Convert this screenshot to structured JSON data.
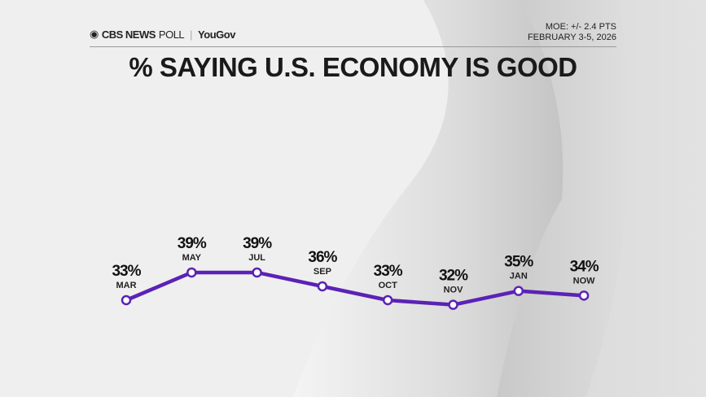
{
  "header": {
    "brand": "CBS NEWS",
    "brand_suffix": "POLL",
    "partner": "YouGov",
    "moe": "MOE: +/- 2.4 PTS",
    "dates": "FEBRUARY 3-5, 2026"
  },
  "colors": {
    "line": "#5b22b5",
    "background": "#efefef"
  },
  "chart_data": {
    "type": "line",
    "title": "% SAYING U.S. ECONOMY IS GOOD",
    "categories": [
      "MAR",
      "MAY",
      "JUL",
      "SEP",
      "OCT",
      "NOV",
      "JAN",
      "NOW"
    ],
    "values": [
      33,
      39,
      39,
      36,
      33,
      32,
      35,
      34
    ],
    "data_labels": [
      "33%",
      "39%",
      "39%",
      "36%",
      "33%",
      "32%",
      "35%",
      "34%"
    ],
    "unit": "%",
    "grid": false,
    "legend": "none"
  }
}
